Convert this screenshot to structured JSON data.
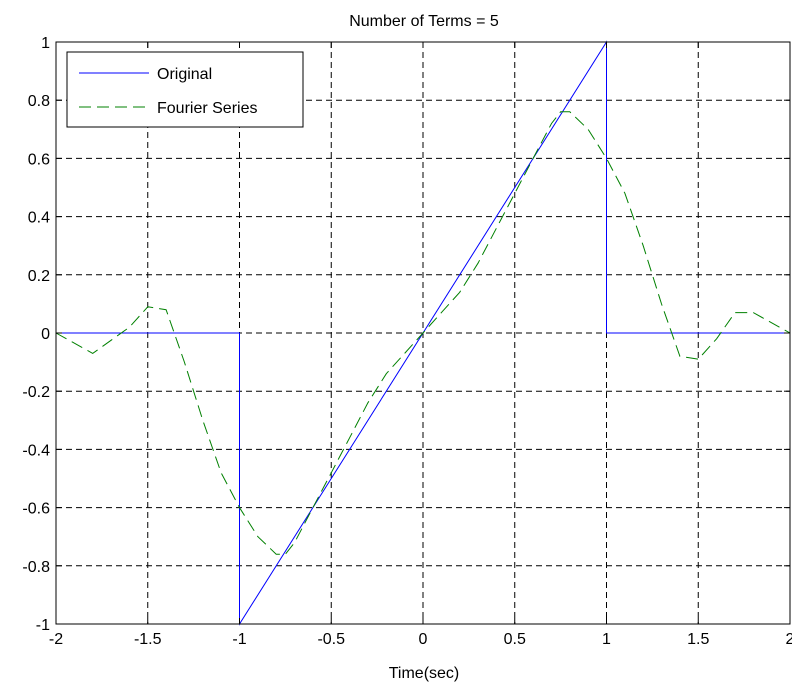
{
  "chart_data": {
    "type": "line",
    "title": "Number of Terms = 5",
    "xlabel": "Time(sec)",
    "ylabel": "",
    "xlim": [
      -2,
      2
    ],
    "ylim": [
      -1,
      1
    ],
    "xticks": [
      -2,
      -1.5,
      -1,
      -0.5,
      0,
      0.5,
      1,
      1.5,
      2
    ],
    "xtick_labels": [
      "-2",
      "-1.5",
      "-1",
      "-0.5",
      "0",
      "0.5",
      "1",
      "1.5",
      "2"
    ],
    "yticks": [
      -1,
      -0.8,
      -0.6,
      -0.4,
      -0.2,
      0,
      0.2,
      0.4,
      0.6,
      0.8,
      1
    ],
    "ytick_labels": [
      "-1",
      "-0.8",
      "-0.6",
      "-0.4",
      "-0.2",
      "0",
      "0.2",
      "0.4",
      "0.6",
      "0.8",
      "1"
    ],
    "grid": true,
    "legend_position": "top-left",
    "series": [
      {
        "name": "Original",
        "color": "#0000ff",
        "style": "solid",
        "x": [
          -2,
          -1,
          -1,
          1,
          1,
          2
        ],
        "y": [
          0,
          0,
          -1,
          1,
          0,
          0
        ]
      },
      {
        "name": "Fourier Series",
        "color": "#008000",
        "style": "dashed",
        "x": [
          -2,
          -1.8,
          -1.6,
          -1.5,
          -1.4,
          -1.3,
          -1.2,
          -1.1,
          -1.0,
          -0.9,
          -0.8,
          -0.75,
          -0.7,
          -0.6,
          -0.5,
          -0.4,
          -0.3,
          -0.2,
          -0.1,
          0,
          0.1,
          0.2,
          0.3,
          0.4,
          0.5,
          0.6,
          0.7,
          0.75,
          0.8,
          0.9,
          1.0,
          1.1,
          1.2,
          1.3,
          1.4,
          1.5,
          1.6,
          1.7,
          1.8,
          2.0
        ],
        "y": [
          0,
          -0.07,
          0.02,
          0.09,
          0.08,
          -0.1,
          -0.3,
          -0.48,
          -0.6,
          -0.7,
          -0.76,
          -0.76,
          -0.72,
          -0.6,
          -0.48,
          -0.36,
          -0.24,
          -0.14,
          -0.07,
          0,
          0.07,
          0.14,
          0.24,
          0.36,
          0.48,
          0.6,
          0.72,
          0.76,
          0.76,
          0.7,
          0.6,
          0.48,
          0.3,
          0.1,
          -0.08,
          -0.09,
          -0.02,
          0.07,
          0.07,
          0
        ]
      }
    ]
  }
}
